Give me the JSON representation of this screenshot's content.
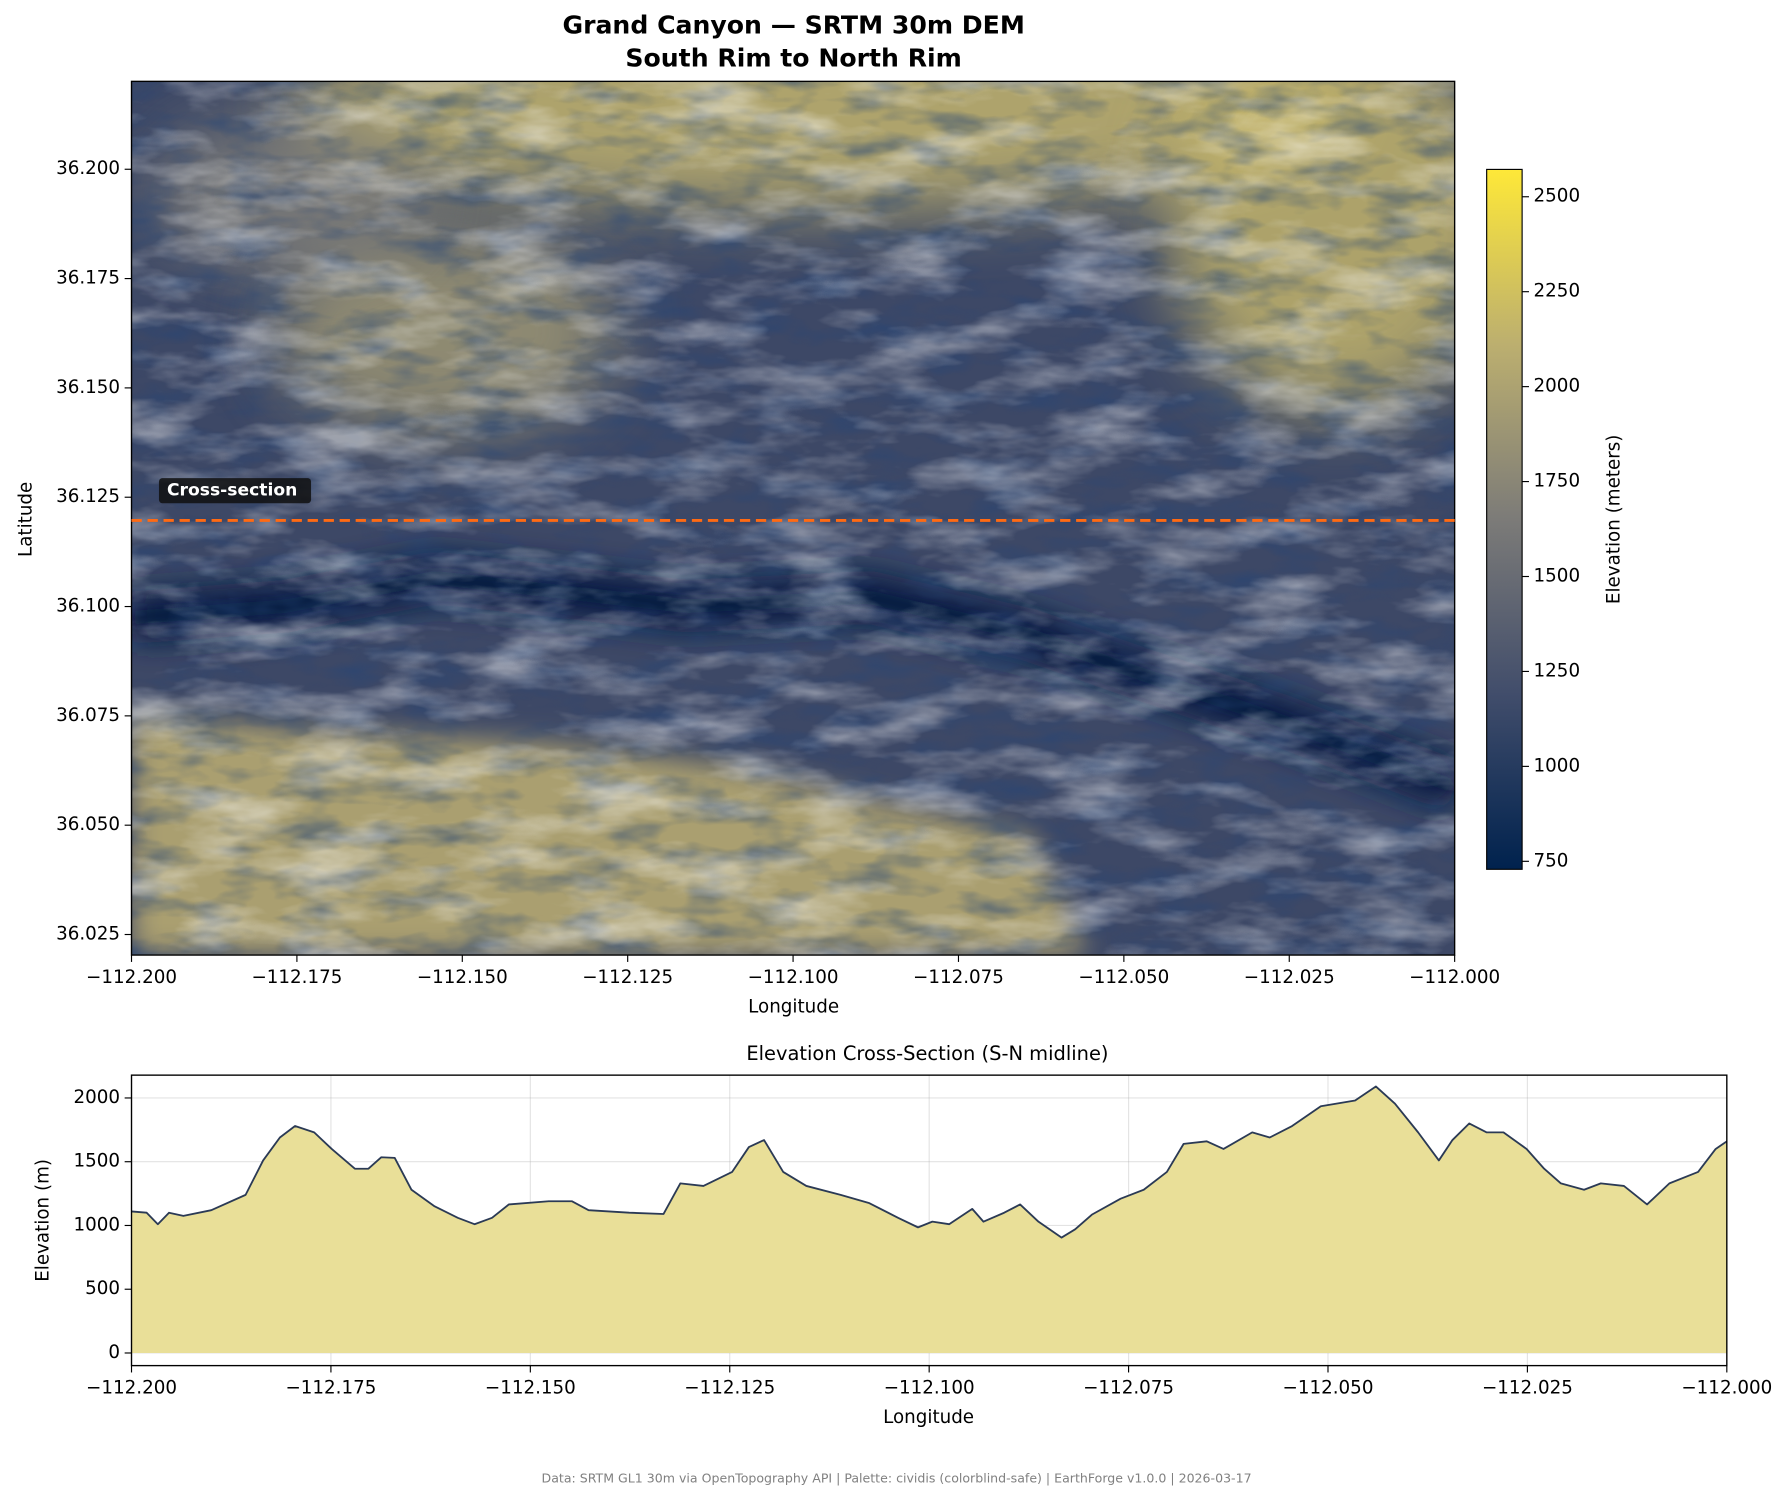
{
  "chart_data": [
    {
      "type": "raster",
      "title": "Grand Canyon — SRTM 30m DEM",
      "subtitle": "South Rim to North Rim",
      "x_label": "Longitude",
      "y_label": "Latitude",
      "xlim": [
        -112.2,
        -112.0
      ],
      "xticks": [
        {
          "value": -112.2,
          "label": "−112.200"
        },
        {
          "value": -112.175,
          "label": "−112.175"
        },
        {
          "value": -112.15,
          "label": "−112.150"
        },
        {
          "value": -112.125,
          "label": "−112.125"
        },
        {
          "value": -112.1,
          "label": "−112.100"
        },
        {
          "value": -112.075,
          "label": "−112.075"
        },
        {
          "value": -112.05,
          "label": "−112.050"
        },
        {
          "value": -112.025,
          "label": "−112.025"
        },
        {
          "value": -112.0,
          "label": "−112.000"
        }
      ],
      "ylim": [
        36.0203,
        36.2201
      ],
      "yticks": [
        {
          "value": 36.025,
          "label": "36.025"
        },
        {
          "value": 36.05,
          "label": "36.050"
        },
        {
          "value": 36.075,
          "label": "36.075"
        },
        {
          "value": 36.1,
          "label": "36.100"
        },
        {
          "value": 36.125,
          "label": "36.125"
        },
        {
          "value": 36.15,
          "label": "36.150"
        },
        {
          "value": 36.175,
          "label": "36.175"
        },
        {
          "value": 36.2,
          "label": "36.200"
        }
      ],
      "colorbar_label": "Elevation (meters)",
      "clim": [
        729,
        2572
      ],
      "cticks": [
        750,
        1000,
        1250,
        1500,
        1750,
        2000,
        2250,
        2500
      ],
      "colormap": [
        "#00224e",
        "#414d6b",
        "#7c7b78",
        "#bcaf6f",
        "#fee838"
      ],
      "cross_section": {
        "label": "Cross-section",
        "lat": 36.1197,
        "color": "#ff6a13"
      }
    },
    {
      "type": "area",
      "title": "Elevation Cross-Section (S-N midline)",
      "x_label": "Longitude",
      "y_label": "Elevation (m)",
      "xlim": [
        -112.2,
        -112.0
      ],
      "xticks": [
        {
          "value": -112.2,
          "label": "−112.200"
        },
        {
          "value": -112.175,
          "label": "−112.175"
        },
        {
          "value": -112.15,
          "label": "−112.150"
        },
        {
          "value": -112.125,
          "label": "−112.125"
        },
        {
          "value": -112.1,
          "label": "−112.100"
        },
        {
          "value": -112.075,
          "label": "−112.075"
        },
        {
          "value": -112.05,
          "label": "−112.050"
        },
        {
          "value": -112.025,
          "label": "−112.025"
        },
        {
          "value": -112.0,
          "label": "−112.000"
        }
      ],
      "ylim": [
        -99,
        2179
      ],
      "yticks": [
        0,
        500,
        1000,
        1500,
        2000
      ],
      "grid": true,
      "color": "#e9df98",
      "line_color": "#2b3a55",
      "x": [
        -112.2,
        -112.1981,
        -112.1967,
        -112.1953,
        -112.1935,
        -112.19,
        -112.1857,
        -112.1835,
        -112.1814,
        -112.1795,
        -112.1771,
        -112.1749,
        -112.172,
        -112.1703,
        -112.1687,
        -112.167,
        -112.1649,
        -112.162,
        -112.1591,
        -112.157,
        -112.1548,
        -112.1527,
        -112.1477,
        -112.1448,
        -112.1427,
        -112.1376,
        -112.1333,
        -112.1312,
        -112.1283,
        -112.1247,
        -112.1226,
        -112.1207,
        -112.1183,
        -112.1154,
        -112.1111,
        -112.1075,
        -112.1039,
        -112.1014,
        -112.0996,
        -112.0975,
        -112.0946,
        -112.0932,
        -112.0906,
        -112.0886,
        -112.0863,
        -112.0834,
        -112.0817,
        -112.0796,
        -112.076,
        -112.0731,
        -112.0702,
        -112.0681,
        -112.0652,
        -112.0631,
        -112.0595,
        -112.0573,
        -112.0545,
        -112.0509,
        -112.0466,
        -112.044,
        -112.0416,
        -112.0387,
        -112.0361,
        -112.0344,
        -112.0323,
        -112.0301,
        -112.028,
        -112.0251,
        -112.0229,
        -112.0208,
        -112.0179,
        -112.0158,
        -112.0129,
        -112.01,
        -112.0072,
        -112.0036,
        -112.0014,
        -112.0
      ],
      "values": [
        1110,
        1100,
        1010,
        1100,
        1075,
        1120,
        1240,
        1510,
        1690,
        1780,
        1730,
        1600,
        1445,
        1445,
        1535,
        1530,
        1280,
        1150,
        1060,
        1010,
        1060,
        1165,
        1190,
        1190,
        1120,
        1100,
        1090,
        1330,
        1310,
        1420,
        1615,
        1670,
        1420,
        1310,
        1240,
        1175,
        1060,
        985,
        1030,
        1010,
        1130,
        1030,
        1100,
        1165,
        1030,
        905,
        970,
        1085,
        1210,
        1280,
        1420,
        1640,
        1660,
        1600,
        1730,
        1690,
        1780,
        1935,
        1980,
        2090,
        1955,
        1730,
        1510,
        1670,
        1800,
        1730,
        1730,
        1600,
        1445,
        1330,
        1280,
        1330,
        1310,
        1165,
        1330,
        1420,
        1600,
        1660
      ]
    }
  ],
  "source": "Data: SRTM GL1 30m via OpenTopography API | Palette: cividis (colorblind-safe) | EarthForge v1.0.0 | 2026-03-17"
}
